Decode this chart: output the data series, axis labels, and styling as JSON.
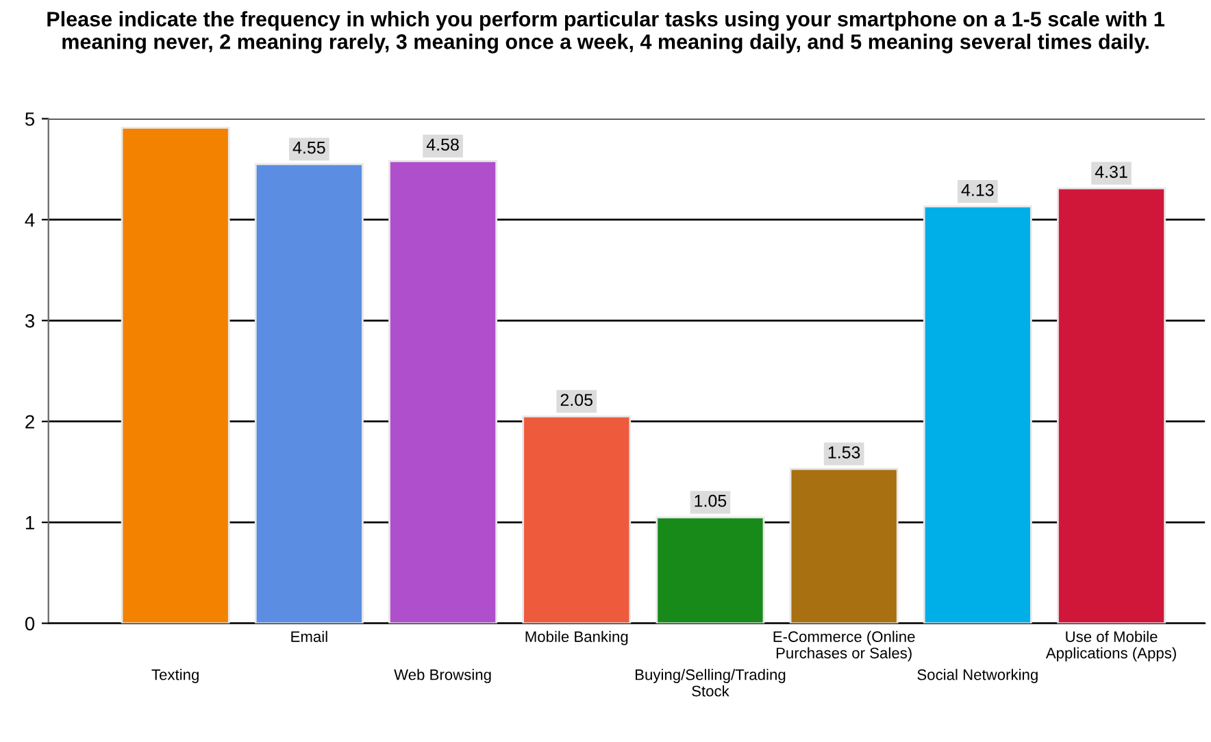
{
  "chart_data": {
    "type": "bar",
    "title": "Please indicate the frequency in which you perform particular tasks using your smartphone on a 1-5 scale with 1 meaning never, 2 meaning rarely, 3 meaning once a week, 4 meaning daily, and 5 meaning several times daily.",
    "categories": [
      "Texting",
      "Email",
      "Web Browsing",
      "Mobile Banking",
      "Buying/Selling/Trading\nStock",
      "E-Commerce (Online\nPurchases or Sales)",
      "Social Networking",
      "Use of Mobile\nApplications (Apps)"
    ],
    "values": [
      4.91,
      4.55,
      4.58,
      2.05,
      1.05,
      1.53,
      4.13,
      4.31
    ],
    "value_labels": [
      null,
      "4.55",
      "4.58",
      "2.05",
      "1.05",
      "1.53",
      "4.13",
      "4.31"
    ],
    "colors": [
      "#f28200",
      "#5b8ee2",
      "#b04fcc",
      "#ee5a3c",
      "#178a1a",
      "#a87010",
      "#00aee8",
      "#d0173a"
    ],
    "ylim": [
      0,
      5
    ],
    "yticks": [
      0,
      1,
      2,
      3,
      4,
      5
    ],
    "grid": "y",
    "legend": false
  }
}
